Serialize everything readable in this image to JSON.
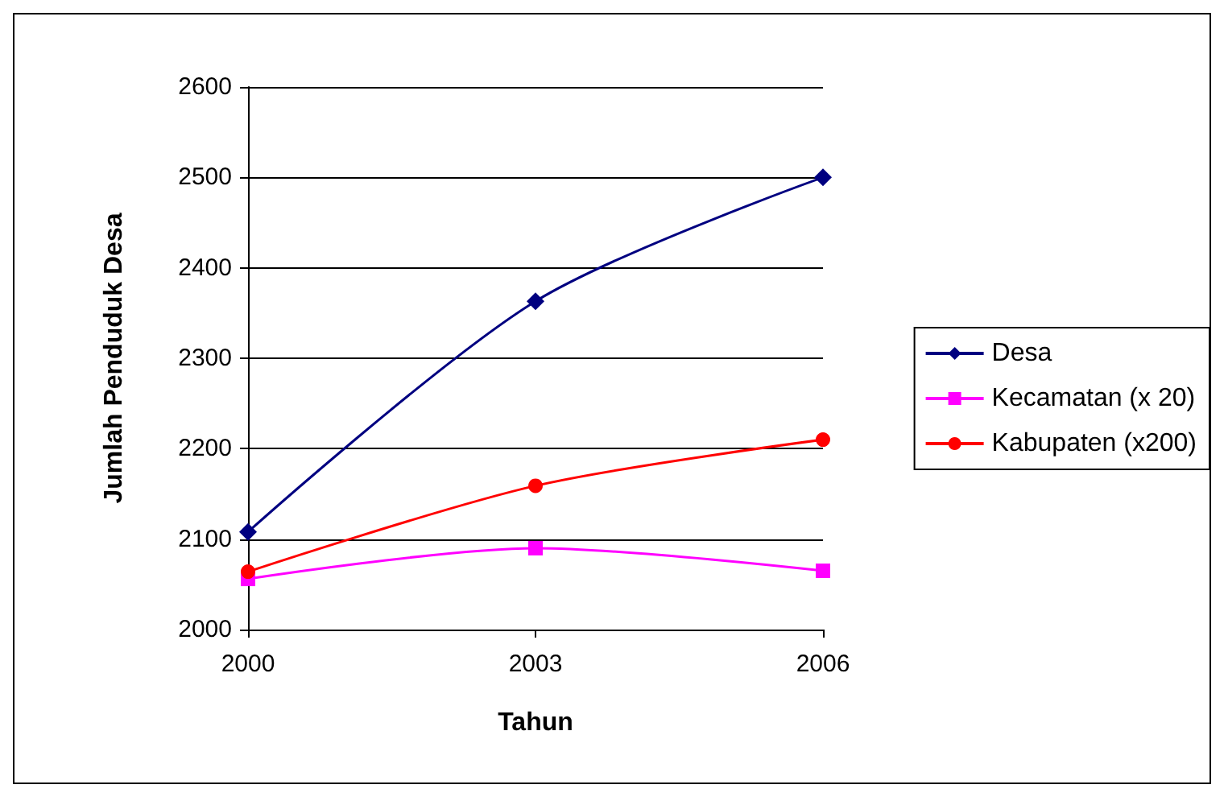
{
  "chart_data": {
    "type": "line",
    "xlabel": "Tahun",
    "ylabel": "Jumlah Penduduk Desa",
    "categories": [
      "2000",
      "2003",
      "2006"
    ],
    "series": [
      {
        "name": "Desa",
        "color": "#000080",
        "marker": "diamond",
        "values": [
          2108,
          2363,
          2500
        ]
      },
      {
        "name": "Kecamatan (x 20)",
        "color": "#ff00ff",
        "marker": "square",
        "values": [
          2056,
          2090,
          2065
        ]
      },
      {
        "name": "Kabupaten (x200)",
        "color": "#ff0000",
        "marker": "circle",
        "values": [
          2064,
          2159,
          2210
        ]
      }
    ],
    "ylim": [
      2000,
      2600
    ],
    "yticks": [
      2000,
      2100,
      2200,
      2300,
      2400,
      2500,
      2600
    ],
    "grid": "y",
    "legend": "right",
    "line_style": "solid"
  }
}
